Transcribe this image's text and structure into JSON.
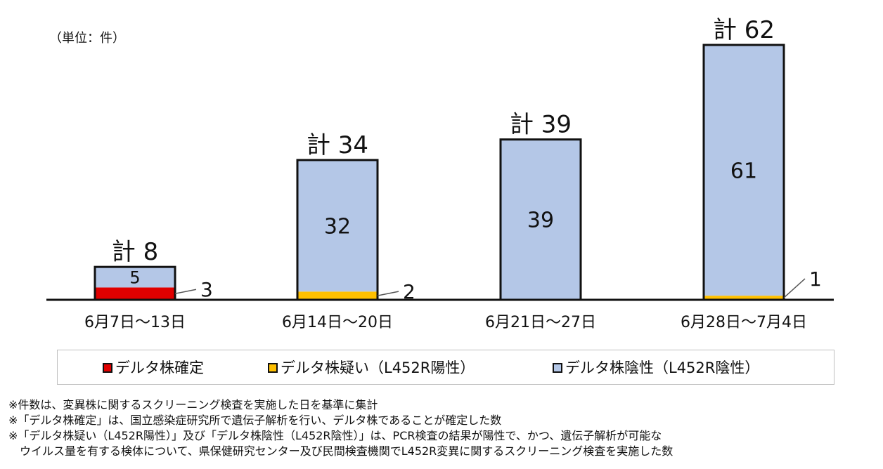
{
  "unit_label": "（単位：件）",
  "chart_data": {
    "type": "bar",
    "stacked": true,
    "categories": [
      "6月7日～13日",
      "6月14日～20日",
      "6月21日～27日",
      "6月28日～7月4日"
    ],
    "series": [
      {
        "name": "デルタ株確定",
        "values": [
          3,
          0,
          0,
          0
        ],
        "color": "#e00000"
      },
      {
        "name": "デルタ株疑い（L452R陽性）",
        "values": [
          0,
          2,
          0,
          1
        ],
        "color": "#ffc000"
      },
      {
        "name": "デルタ株陰性（L452R陰性）",
        "values": [
          5,
          32,
          39,
          61
        ],
        "color": "#b4c7e7"
      }
    ],
    "inner_labels": [
      "5",
      "32",
      "39",
      "61"
    ],
    "side_labels": [
      "3",
      "2",
      "",
      "1"
    ],
    "totals": [
      "計 8",
      "計 34",
      "計 39",
      "計 62"
    ],
    "ylim": [
      0,
      62
    ],
    "grid": false,
    "legend_position": "bottom"
  },
  "legend": [
    {
      "label": "デルタ株確定",
      "color": "#e00000"
    },
    {
      "label": "デルタ株疑い（L452R陽性）",
      "color": "#ffc000"
    },
    {
      "label": "デルタ株陰性（L452R陰性）",
      "color": "#b4c7e7"
    }
  ],
  "notes": [
    "※件数は、変異株に関するスクリーニング検査を実施した日を基準に集計",
    "※「デルタ株確定」は、国立感染症研究所で遺伝子解析を行い、デルタ株であることが確定した数",
    "※「デルタ株疑い（L452R陽性）」及び「デルタ株陰性（L452R陰性）」は、PCR検査の結果が陽性で、かつ、遺伝子解析が可能な",
    "　ウイルス量を有する検体について、県保健研究センター及び民間検査機関でL452R変異に関するスクリーニング検査を実施した数"
  ]
}
